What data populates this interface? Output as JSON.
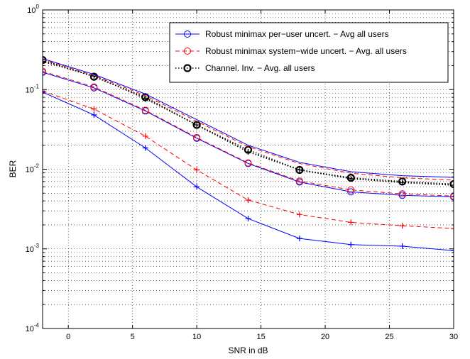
{
  "chart_data": {
    "type": "line",
    "xlabel": "SNR in dB",
    "ylabel": "BER",
    "xlim": [
      -2,
      30
    ],
    "ylim": [
      0.0001,
      1
    ],
    "yscale": "log",
    "grid": true,
    "legend_position": "top-right",
    "x_ticks": [
      "0",
      "5",
      "10",
      "15",
      "20",
      "25",
      "30"
    ],
    "x_tick_values": [
      0,
      5,
      10,
      15,
      20,
      25,
      30
    ],
    "y_ticks": [
      {
        "base": "10",
        "exp": "0",
        "value": 1
      },
      {
        "base": "10",
        "exp": "-1",
        "value": 0.1
      },
      {
        "base": "10",
        "exp": "-2",
        "value": 0.01
      },
      {
        "base": "10",
        "exp": "-3",
        "value": 0.001
      },
      {
        "base": "10",
        "exp": "-4",
        "value": 0.0001
      }
    ],
    "legend": [
      {
        "label": "Robust minimax per−user uncert. − Avg all users",
        "color": "#0000ff",
        "dash": "solid",
        "marker": "circle"
      },
      {
        "label": "Robust minimax system−wide uncert. − Avg. all users",
        "color": "#ff0000",
        "dash": "dashed",
        "marker": "circle"
      },
      {
        "label": "Channel. Inv. − Avg. all users",
        "color": "#000000",
        "dash": "dotted",
        "marker": "circle-bold"
      }
    ],
    "series": [
      {
        "color": "#0000ff",
        "dash": "solid",
        "marker": "circle",
        "x": [
          -2,
          2,
          6,
          10,
          14,
          18,
          22,
          26,
          30
        ],
        "y": [
          0.165,
          0.105,
          0.054,
          0.0245,
          0.0118,
          0.0069,
          0.0052,
          0.0047,
          0.0045
        ]
      },
      {
        "color": "#ff0000",
        "dash": "dashed",
        "marker": "circle",
        "x": [
          -2,
          2,
          6,
          10,
          14,
          18,
          22,
          26,
          30
        ],
        "y": [
          0.17,
          0.108,
          0.055,
          0.025,
          0.012,
          0.0071,
          0.0055,
          0.0049,
          0.0046
        ]
      },
      {
        "color": "#000000",
        "dash": "dotted",
        "marker": "circle-bold",
        "x": [
          -2,
          2,
          6,
          10,
          14,
          18,
          22,
          26,
          30
        ],
        "y": [
          0.235,
          0.145,
          0.08,
          0.036,
          0.0175,
          0.0098,
          0.0078,
          0.007,
          0.0065
        ]
      },
      {
        "color": "#000000",
        "dash": "dotted",
        "marker": "plus",
        "x": [
          -2,
          2,
          6,
          10,
          14,
          18,
          22,
          26,
          30
        ],
        "y": [
          0.225,
          0.148,
          0.077,
          0.036,
          0.0165,
          0.0098,
          0.0076,
          0.0068,
          0.0063
        ]
      },
      {
        "color": "#0000ff",
        "dash": "solid",
        "marker": "none",
        "x": [
          -2,
          2,
          6,
          10,
          14,
          18,
          22,
          26,
          30
        ],
        "y": [
          0.245,
          0.155,
          0.088,
          0.042,
          0.02,
          0.0122,
          0.0093,
          0.0083,
          0.0079
        ]
      },
      {
        "color": "#ff0000",
        "dash": "dashed",
        "marker": "none",
        "x": [
          -2,
          2,
          6,
          10,
          14,
          18,
          22,
          26,
          30
        ],
        "y": [
          0.24,
          0.15,
          0.084,
          0.04,
          0.0192,
          0.0118,
          0.0089,
          0.0078,
          0.0073
        ]
      },
      {
        "color": "#ff0000",
        "dash": "dashed",
        "marker": "plus",
        "x": [
          -2,
          2,
          6,
          10,
          14,
          18,
          22,
          26,
          30
        ],
        "y": [
          0.096,
          0.057,
          0.026,
          0.0098,
          0.0041,
          0.0027,
          0.00215,
          0.00195,
          0.0018
        ]
      },
      {
        "color": "#0000ff",
        "dash": "solid",
        "marker": "plus",
        "x": [
          -2,
          2,
          6,
          10,
          14,
          18,
          22,
          26,
          30
        ],
        "y": [
          0.093,
          0.048,
          0.0185,
          0.006,
          0.0024,
          0.00135,
          0.00113,
          0.00108,
          0.00095
        ]
      }
    ]
  }
}
